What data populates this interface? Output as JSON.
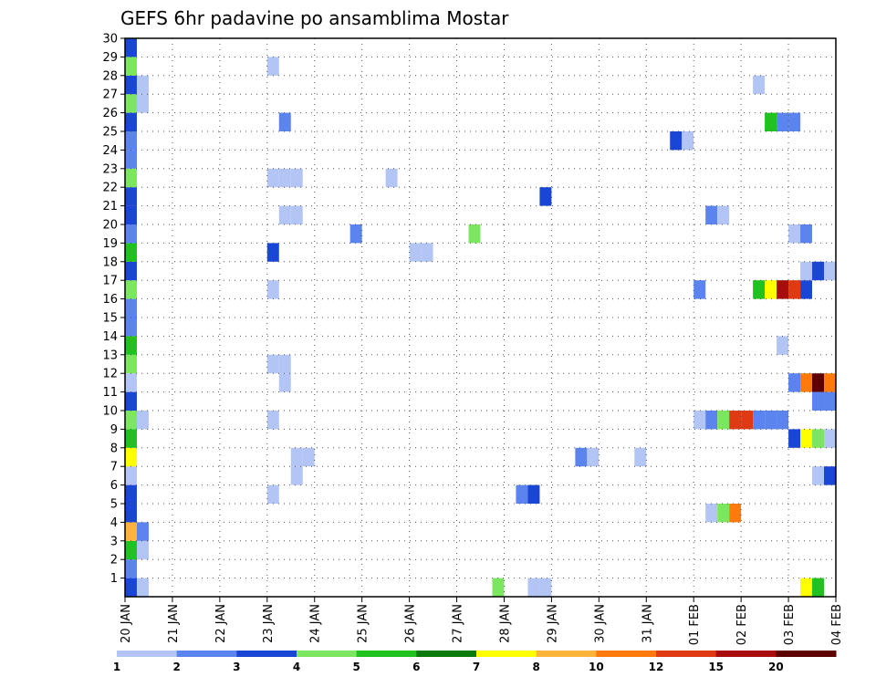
{
  "chart_data": {
    "type": "heatmap",
    "title": "GEFS 6hr padavine po ansamblima Mostar",
    "x_tick_labels": [
      "20 JAN",
      "21 JAN",
      "22 JAN",
      "23 JAN",
      "24 JAN",
      "25 JAN",
      "26 JAN",
      "27 JAN",
      "28 JAN",
      "29 JAN",
      "30 JAN",
      "31 JAN",
      "01 FEB",
      "02 FEB",
      "03 FEB",
      "04 FEB"
    ],
    "y_tick_labels": [
      "1",
      "2",
      "3",
      "4",
      "5",
      "6",
      "7",
      "8",
      "9",
      "10",
      "11",
      "12",
      "13",
      "14",
      "15",
      "16",
      "17",
      "18",
      "19",
      "20",
      "21",
      "22",
      "23",
      "24",
      "25",
      "26",
      "27",
      "28",
      "29",
      "30"
    ],
    "y_range": [
      0,
      30
    ],
    "x_range_days": [
      0,
      15
    ],
    "time_step_hours": 6,
    "grid": true,
    "legend_position": "bottom",
    "colorbar": {
      "labels": [
        "1",
        "2",
        "3",
        "4",
        "5",
        "6",
        "7",
        "8",
        "10",
        "12",
        "15",
        "20"
      ],
      "colors": [
        "#b3c5f5",
        "#5b84ee",
        "#1a46d6",
        "#7ce660",
        "#1fc21f",
        "#0a7a0a",
        "#ffff00",
        "#ffb33a",
        "#ff7a0a",
        "#e03a14",
        "#a80c0c",
        "#5c0000"
      ]
    },
    "cells": [
      {
        "t": "20 JAN 00",
        "m": 1,
        "v": 3
      },
      {
        "t": "20 JAN 00",
        "m": 2,
        "v": 2
      },
      {
        "t": "20 JAN 00",
        "m": 3,
        "v": 5
      },
      {
        "t": "20 JAN 00",
        "m": 4,
        "v": 8
      },
      {
        "t": "20 JAN 00",
        "m": 5,
        "v": 3
      },
      {
        "t": "20 JAN 00",
        "m": 6,
        "v": 3
      },
      {
        "t": "20 JAN 00",
        "m": 7,
        "v": 1
      },
      {
        "t": "20 JAN 00",
        "m": 8,
        "v": 7
      },
      {
        "t": "20 JAN 00",
        "m": 9,
        "v": 5
      },
      {
        "t": "20 JAN 00",
        "m": 10,
        "v": 4
      },
      {
        "t": "20 JAN 00",
        "m": 11,
        "v": 3
      },
      {
        "t": "20 JAN 00",
        "m": 12,
        "v": 1
      },
      {
        "t": "20 JAN 00",
        "m": 13,
        "v": 4
      },
      {
        "t": "20 JAN 00",
        "m": 14,
        "v": 5
      },
      {
        "t": "20 JAN 00",
        "m": 15,
        "v": 2
      },
      {
        "t": "20 JAN 00",
        "m": 16,
        "v": 2
      },
      {
        "t": "20 JAN 00",
        "m": 17,
        "v": 4
      },
      {
        "t": "20 JAN 00",
        "m": 18,
        "v": 3
      },
      {
        "t": "20 JAN 00",
        "m": 19,
        "v": 5
      },
      {
        "t": "20 JAN 00",
        "m": 20,
        "v": 2
      },
      {
        "t": "20 JAN 00",
        "m": 21,
        "v": 3
      },
      {
        "t": "20 JAN 00",
        "m": 22,
        "v": 3
      },
      {
        "t": "20 JAN 00",
        "m": 23,
        "v": 4
      },
      {
        "t": "20 JAN 00",
        "m": 24,
        "v": 2
      },
      {
        "t": "20 JAN 00",
        "m": 25,
        "v": 2
      },
      {
        "t": "20 JAN 00",
        "m": 26,
        "v": 3
      },
      {
        "t": "20 JAN 00",
        "m": 27,
        "v": 4
      },
      {
        "t": "20 JAN 00",
        "m": 28,
        "v": 3
      },
      {
        "t": "20 JAN 00",
        "m": 29,
        "v": 4
      },
      {
        "t": "20 JAN 00",
        "m": 30,
        "v": 3
      },
      {
        "t": "20 JAN 06",
        "m": 1,
        "v": 1
      },
      {
        "t": "20 JAN 06",
        "m": 3,
        "v": 1
      },
      {
        "t": "20 JAN 06",
        "m": 4,
        "v": 2
      },
      {
        "t": "20 JAN 06",
        "m": 10,
        "v": 1
      },
      {
        "t": "20 JAN 06",
        "m": 27,
        "v": 1
      },
      {
        "t": "20 JAN 06",
        "m": 28,
        "v": 1
      },
      {
        "t": "23 JAN 00",
        "m": 6,
        "v": 1
      },
      {
        "t": "23 JAN 00",
        "m": 10,
        "v": 1
      },
      {
        "t": "23 JAN 00",
        "m": 13,
        "v": 1
      },
      {
        "t": "23 JAN 00",
        "m": 17,
        "v": 1
      },
      {
        "t": "23 JAN 00",
        "m": 19,
        "v": 3
      },
      {
        "t": "23 JAN 00",
        "m": 23,
        "v": 1
      },
      {
        "t": "23 JAN 00",
        "m": 29,
        "v": 1
      },
      {
        "t": "23 JAN 06",
        "m": 12,
        "v": 1
      },
      {
        "t": "23 JAN 06",
        "m": 13,
        "v": 1
      },
      {
        "t": "23 JAN 06",
        "m": 21,
        "v": 1
      },
      {
        "t": "23 JAN 06",
        "m": 23,
        "v": 1
      },
      {
        "t": "23 JAN 06",
        "m": 26,
        "v": 2
      },
      {
        "t": "23 JAN 12",
        "m": 7,
        "v": 1
      },
      {
        "t": "23 JAN 12",
        "m": 8,
        "v": 1
      },
      {
        "t": "23 JAN 12",
        "m": 21,
        "v": 1
      },
      {
        "t": "23 JAN 12",
        "m": 23,
        "v": 1
      },
      {
        "t": "23 JAN 18",
        "m": 8,
        "v": 1
      },
      {
        "t": "24 JAN 18",
        "m": 20,
        "v": 2
      },
      {
        "t": "25 JAN 12",
        "m": 23,
        "v": 1
      },
      {
        "t": "26 JAN 00",
        "m": 19,
        "v": 1
      },
      {
        "t": "26 JAN 06",
        "m": 19,
        "v": 1
      },
      {
        "t": "27 JAN 06",
        "m": 20,
        "v": 4
      },
      {
        "t": "27 JAN 18",
        "m": 1,
        "v": 4
      },
      {
        "t": "28 JAN 06",
        "m": 6,
        "v": 2
      },
      {
        "t": "28 JAN 12",
        "m": 1,
        "v": 1
      },
      {
        "t": "28 JAN 12",
        "m": 6,
        "v": 3
      },
      {
        "t": "28 JAN 18",
        "m": 1,
        "v": 1
      },
      {
        "t": "28 JAN 18",
        "m": 22,
        "v": 3
      },
      {
        "t": "29 JAN 12",
        "m": 8,
        "v": 2
      },
      {
        "t": "29 JAN 18",
        "m": 8,
        "v": 1
      },
      {
        "t": "30 JAN 18",
        "m": 8,
        "v": 1
      },
      {
        "t": "31 JAN 12",
        "m": 25,
        "v": 3
      },
      {
        "t": "31 JAN 18",
        "m": 25,
        "v": 1
      },
      {
        "t": "01 FEB 00",
        "m": 10,
        "v": 1
      },
      {
        "t": "01 FEB 00",
        "m": 17,
        "v": 2
      },
      {
        "t": "01 FEB 06",
        "m": 5,
        "v": 1
      },
      {
        "t": "01 FEB 06",
        "m": 10,
        "v": 2
      },
      {
        "t": "01 FEB 06",
        "m": 21,
        "v": 2
      },
      {
        "t": "01 FEB 12",
        "m": 5,
        "v": 4
      },
      {
        "t": "01 FEB 12",
        "m": 10,
        "v": 4
      },
      {
        "t": "01 FEB 12",
        "m": 21,
        "v": 1
      },
      {
        "t": "01 FEB 18",
        "m": 5,
        "v": 10
      },
      {
        "t": "01 FEB 18",
        "m": 10,
        "v": 12
      },
      {
        "t": "02 FEB 00",
        "m": 10,
        "v": 12
      },
      {
        "t": "02 FEB 06",
        "m": 10,
        "v": 2
      },
      {
        "t": "02 FEB 06",
        "m": 17,
        "v": 5
      },
      {
        "t": "02 FEB 06",
        "m": 28,
        "v": 1
      },
      {
        "t": "02 FEB 12",
        "m": 10,
        "v": 2
      },
      {
        "t": "02 FEB 12",
        "m": 17,
        "v": 7
      },
      {
        "t": "02 FEB 12",
        "m": 26,
        "v": 5
      },
      {
        "t": "02 FEB 18",
        "m": 10,
        "v": 2
      },
      {
        "t": "02 FEB 18",
        "m": 14,
        "v": 1
      },
      {
        "t": "02 FEB 18",
        "m": 17,
        "v": 15
      },
      {
        "t": "02 FEB 18",
        "m": 26,
        "v": 2
      },
      {
        "t": "03 FEB 00",
        "m": 9,
        "v": 3
      },
      {
        "t": "03 FEB 00",
        "m": 12,
        "v": 2
      },
      {
        "t": "03 FEB 00",
        "m": 17,
        "v": 12
      },
      {
        "t": "03 FEB 00",
        "m": 20,
        "v": 1
      },
      {
        "t": "03 FEB 00",
        "m": 26,
        "v": 2
      },
      {
        "t": "03 FEB 06",
        "m": 1,
        "v": 7
      },
      {
        "t": "03 FEB 06",
        "m": 9,
        "v": 7
      },
      {
        "t": "03 FEB 06",
        "m": 12,
        "v": 10
      },
      {
        "t": "03 FEB 06",
        "m": 17,
        "v": 3
      },
      {
        "t": "03 FEB 06",
        "m": 18,
        "v": 1
      },
      {
        "t": "03 FEB 06",
        "m": 20,
        "v": 2
      },
      {
        "t": "03 FEB 12",
        "m": 1,
        "v": 5
      },
      {
        "t": "03 FEB 12",
        "m": 7,
        "v": 1
      },
      {
        "t": "03 FEB 12",
        "m": 9,
        "v": 4
      },
      {
        "t": "03 FEB 12",
        "m": 11,
        "v": 2
      },
      {
        "t": "03 FEB 12",
        "m": 12,
        "v": 20
      },
      {
        "t": "03 FEB 12",
        "m": 18,
        "v": 3
      },
      {
        "t": "03 FEB 18",
        "m": 7,
        "v": 3
      },
      {
        "t": "03 FEB 18",
        "m": 9,
        "v": 1
      },
      {
        "t": "03 FEB 18",
        "m": 11,
        "v": 2
      },
      {
        "t": "03 FEB 18",
        "m": 12,
        "v": 10
      },
      {
        "t": "03 FEB 18",
        "m": 18,
        "v": 1
      }
    ]
  }
}
